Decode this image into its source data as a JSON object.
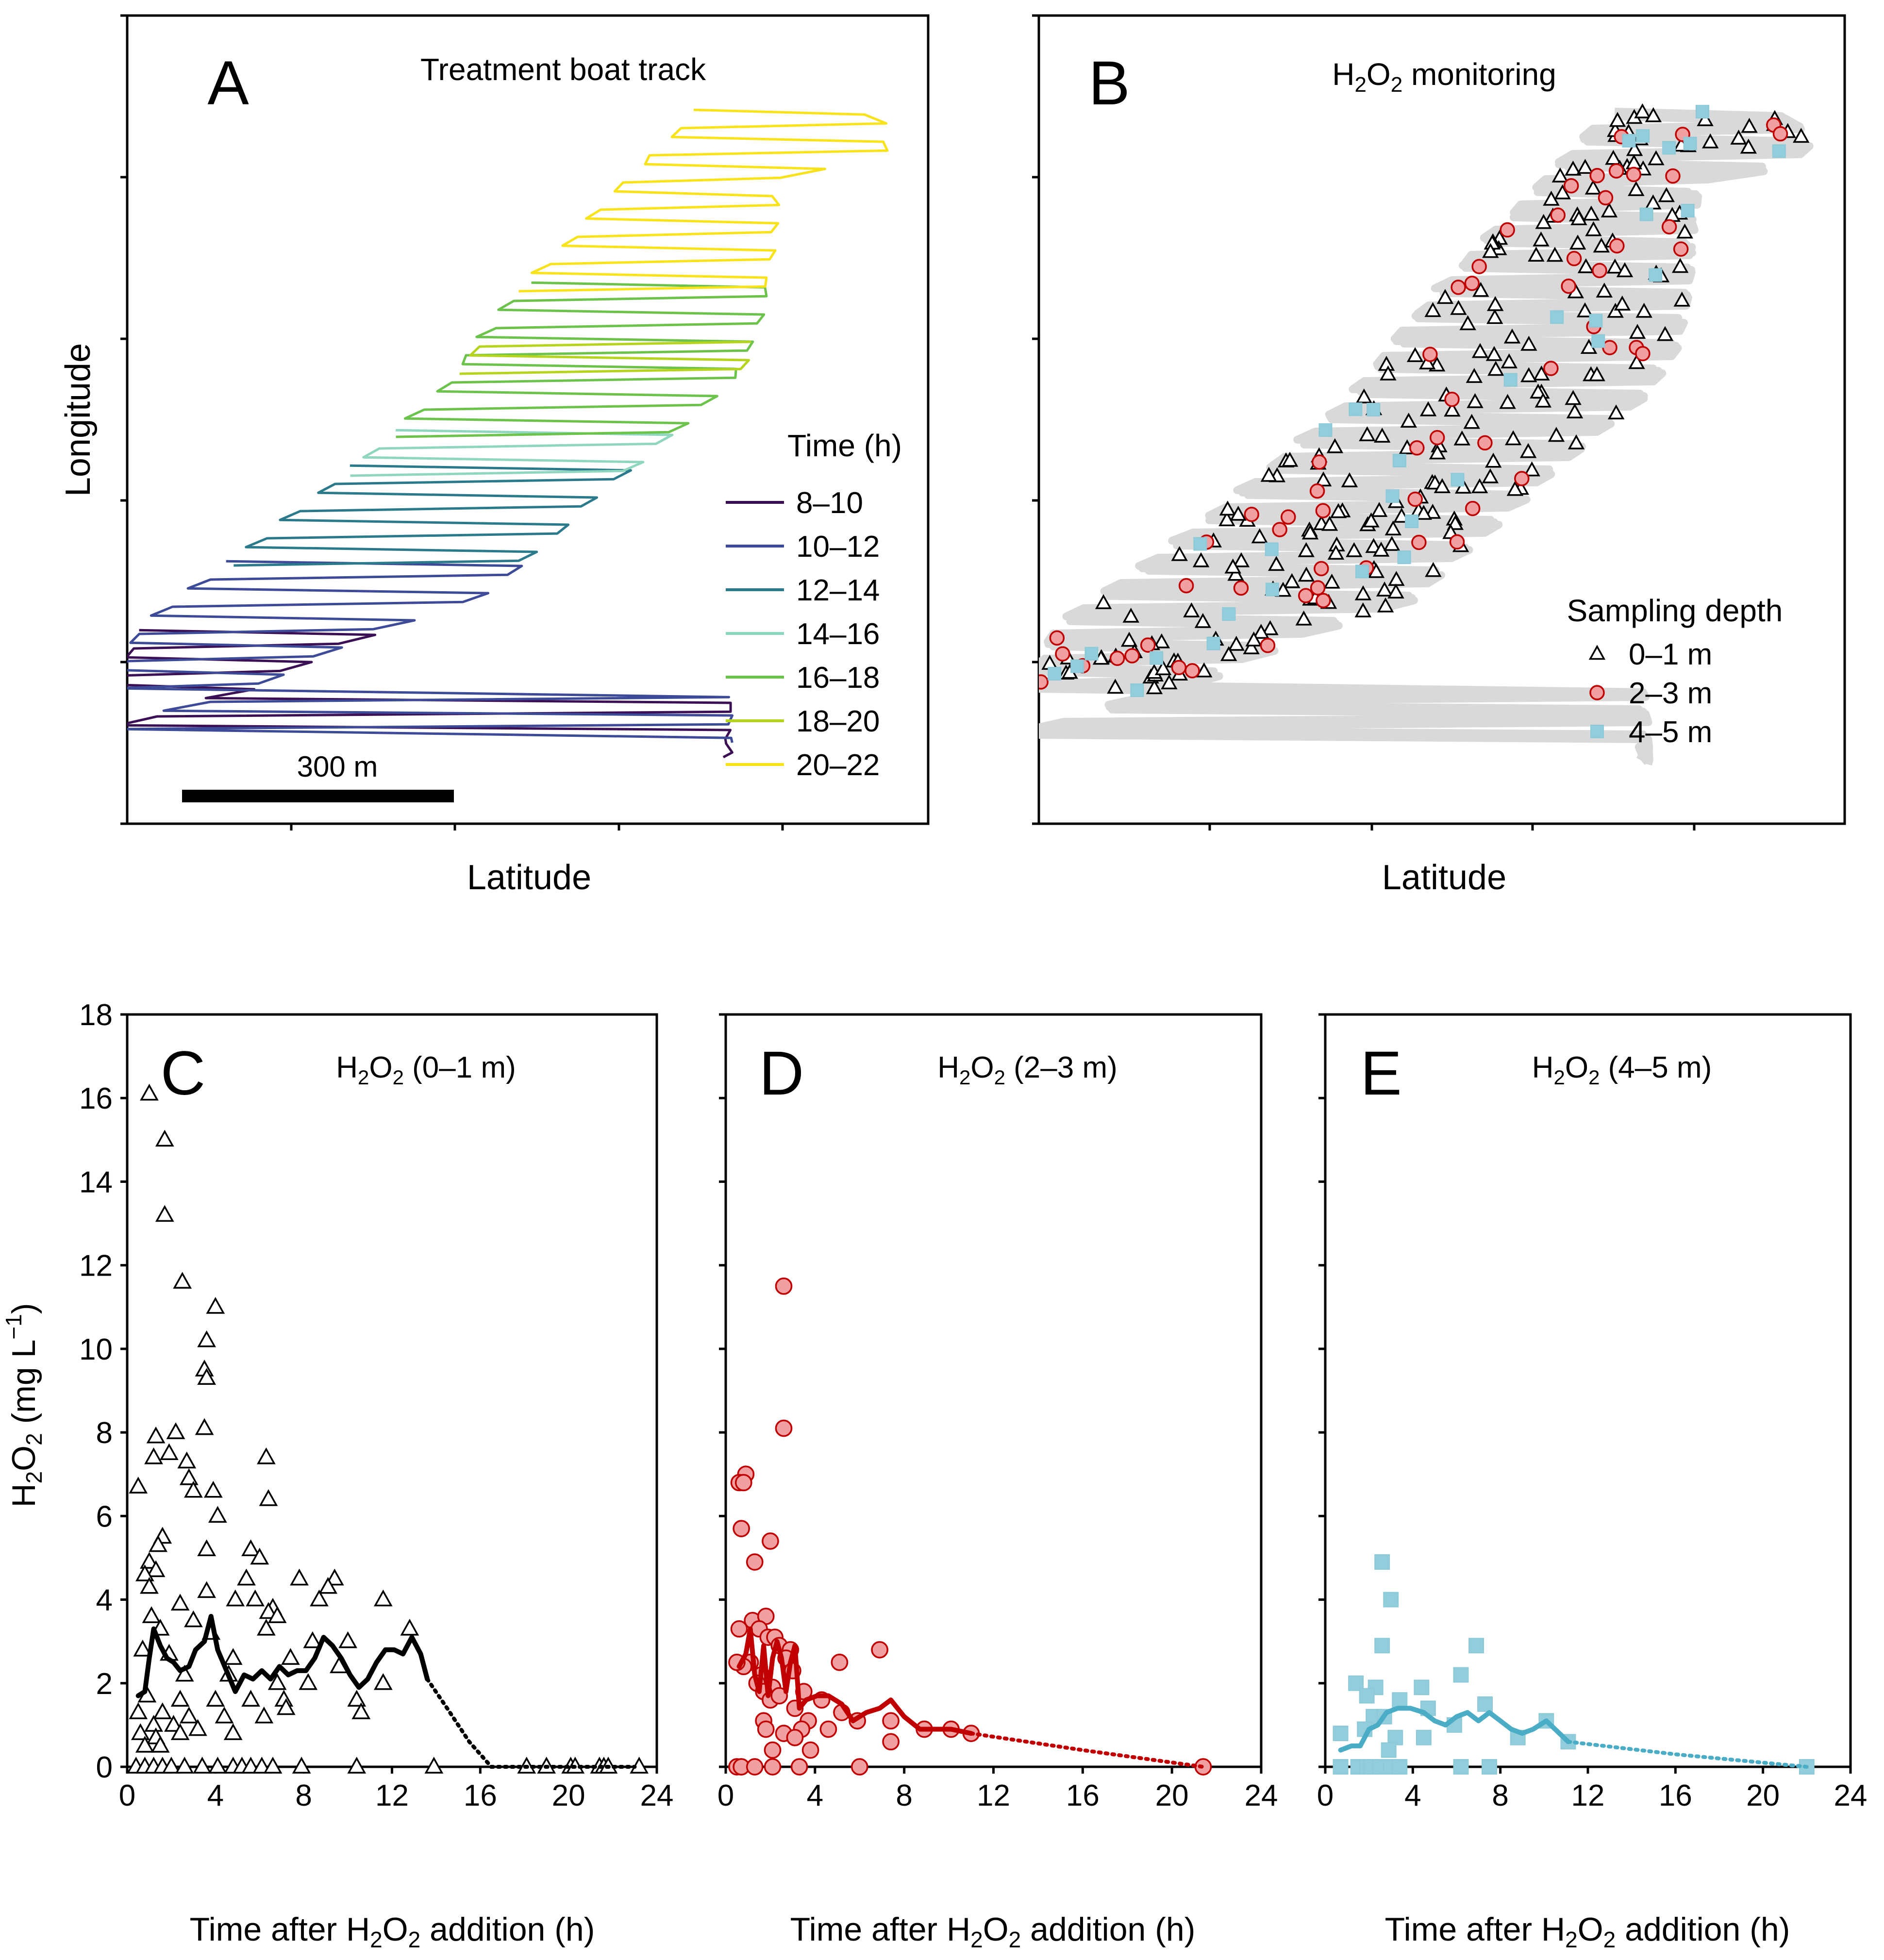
{
  "panels_top": {
    "A": {
      "letter": "A",
      "title": "Treatment boat track",
      "xlabel": "Latitude",
      "ylabel": "Longitude",
      "scale_bar": "300 m",
      "legend_title": "Time  (h)",
      "legend": [
        {
          "label": "8–10",
          "color": "#3b0f54"
        },
        {
          "label": "10–12",
          "color": "#3c4a97"
        },
        {
          "label": "12–14",
          "color": "#2a7a8c"
        },
        {
          "label": "14–16",
          "color": "#8fd6be"
        },
        {
          "label": "16–18",
          "color": "#6cc34c"
        },
        {
          "label": "18–20",
          "color": "#b5d41f"
        },
        {
          "label": "20–22",
          "color": "#f7e21b"
        }
      ]
    },
    "B": {
      "letter": "B",
      "title_pre": "H",
      "title_sub": "2",
      "title_mid": "O",
      "title_sub2": "2",
      "title_post": " monitoring",
      "xlabel": "Latitude",
      "legend_title": "Sampling depth",
      "legend": [
        {
          "label": "0–1 m",
          "marker": "triangle"
        },
        {
          "label": "2–3 m",
          "marker": "circle"
        },
        {
          "label": "4–5 m",
          "marker": "square"
        }
      ]
    }
  },
  "ylabel_bottom": {
    "pre": "H",
    "sub": "2",
    "mid": "O",
    "sub2": "2",
    "post": " (mg L",
    "sup": "−1",
    "end": ")"
  },
  "xlabel_bottom": {
    "pre": "Time after H",
    "sub": "2",
    "mid": "O",
    "sub2": "2",
    "post": " addition (h)"
  },
  "colors": {
    "black": "#000000",
    "red": "#c00000",
    "red_fill": "#f0a0a0",
    "blue": "#4bacc6",
    "blue_fill": "#92cddc",
    "track_gray": "#d9d9d9"
  },
  "chart_data": [
    {
      "type": "scatter",
      "panel": "C",
      "letter": "C",
      "title": {
        "pre": "H",
        "sub": "2",
        "mid": "O",
        "sub2": "2",
        "post": " (0–1 m)"
      },
      "xlim": [
        0,
        24
      ],
      "ylim": [
        0,
        18
      ],
      "xticks": [
        0,
        4,
        8,
        12,
        16,
        20,
        24
      ],
      "yticks": [
        0,
        2,
        4,
        6,
        8,
        10,
        12,
        14,
        16,
        18
      ],
      "marker": "triangle",
      "points": [
        [
          1.0,
          16.1
        ],
        [
          1.7,
          15.0
        ],
        [
          1.7,
          13.2
        ],
        [
          2.5,
          11.6
        ],
        [
          4.0,
          11.0
        ],
        [
          3.6,
          10.2
        ],
        [
          3.5,
          9.5
        ],
        [
          3.6,
          9.3
        ],
        [
          3.5,
          8.1
        ],
        [
          2.2,
          8.0
        ],
        [
          1.3,
          7.9
        ],
        [
          1.9,
          7.5
        ],
        [
          1.2,
          7.4
        ],
        [
          2.7,
          7.3
        ],
        [
          6.3,
          7.4
        ],
        [
          0.5,
          6.7
        ],
        [
          3.9,
          6.6
        ],
        [
          2.8,
          6.9
        ],
        [
          3.0,
          6.6
        ],
        [
          6.4,
          6.4
        ],
        [
          4.1,
          6.0
        ],
        [
          1.6,
          5.5
        ],
        [
          1.4,
          5.3
        ],
        [
          3.6,
          5.2
        ],
        [
          5.6,
          5.2
        ],
        [
          1.0,
          4.9
        ],
        [
          6.0,
          5.0
        ],
        [
          1.3,
          4.7
        ],
        [
          0.8,
          4.6
        ],
        [
          5.4,
          4.5
        ],
        [
          7.8,
          4.5
        ],
        [
          9.4,
          4.5
        ],
        [
          9.1,
          4.3
        ],
        [
          1.0,
          4.3
        ],
        [
          3.6,
          4.2
        ],
        [
          4.9,
          4.0
        ],
        [
          5.8,
          4.0
        ],
        [
          2.4,
          3.9
        ],
        [
          8.7,
          4.0
        ],
        [
          11.6,
          4.0
        ],
        [
          6.6,
          3.8
        ],
        [
          6.4,
          3.7
        ],
        [
          1.1,
          3.6
        ],
        [
          6.8,
          3.6
        ],
        [
          3.0,
          3.5
        ],
        [
          1.5,
          3.3
        ],
        [
          6.3,
          3.3
        ],
        [
          12.8,
          3.3
        ],
        [
          3.8,
          3.2
        ],
        [
          8.4,
          3.0
        ],
        [
          10.0,
          3.0
        ],
        [
          0.7,
          2.8
        ],
        [
          1.9,
          2.7
        ],
        [
          4.8,
          2.6
        ],
        [
          7.4,
          2.6
        ],
        [
          9.6,
          2.4
        ],
        [
          2.6,
          2.2
        ],
        [
          4.6,
          2.2
        ],
        [
          6.8,
          2.0
        ],
        [
          8.2,
          2.0
        ],
        [
          11.6,
          2.0
        ],
        [
          0.9,
          1.7
        ],
        [
          2.4,
          1.6
        ],
        [
          4.0,
          1.6
        ],
        [
          5.6,
          1.6
        ],
        [
          7.1,
          1.6
        ],
        [
          10.4,
          1.6
        ],
        [
          0.5,
          1.3
        ],
        [
          1.6,
          1.3
        ],
        [
          2.8,
          1.2
        ],
        [
          4.4,
          1.2
        ],
        [
          6.2,
          1.2
        ],
        [
          7.2,
          1.4
        ],
        [
          10.6,
          1.3
        ],
        [
          1.2,
          1.0
        ],
        [
          2.1,
          1.0
        ],
        [
          3.2,
          0.9
        ],
        [
          0.6,
          0.8
        ],
        [
          1.3,
          0.7
        ],
        [
          2.4,
          0.8
        ],
        [
          4.8,
          0.8
        ],
        [
          0.8,
          0.5
        ],
        [
          1.5,
          0.5
        ],
        [
          0.4,
          0.0
        ],
        [
          0.8,
          0.0
        ],
        [
          1.2,
          0.0
        ],
        [
          1.6,
          0.0
        ],
        [
          2.0,
          0.0
        ],
        [
          2.6,
          0.0
        ],
        [
          3.4,
          0.0
        ],
        [
          4.1,
          0.0
        ],
        [
          4.8,
          0.0
        ],
        [
          5.2,
          0.0
        ],
        [
          5.6,
          0.0
        ],
        [
          6.1,
          0.0
        ],
        [
          6.6,
          0.0
        ],
        [
          7.9,
          0.0
        ],
        [
          10.4,
          0.0
        ],
        [
          13.9,
          0.0
        ],
        [
          18.1,
          0.0
        ],
        [
          19.0,
          0.0
        ],
        [
          20.1,
          0.0
        ],
        [
          20.3,
          0.0
        ],
        [
          21.4,
          0.0
        ],
        [
          21.6,
          0.0
        ],
        [
          21.8,
          0.0
        ],
        [
          23.2,
          0.0
        ]
      ],
      "line": [
        [
          0.5,
          1.7
        ],
        [
          0.8,
          1.8
        ],
        [
          1.0,
          2.6
        ],
        [
          1.2,
          3.3
        ],
        [
          1.5,
          2.9
        ],
        [
          1.8,
          2.6
        ],
        [
          2.1,
          2.5
        ],
        [
          2.4,
          2.3
        ],
        [
          2.8,
          2.4
        ],
        [
          3.1,
          2.8
        ],
        [
          3.5,
          3.0
        ],
        [
          3.8,
          3.6
        ],
        [
          4.1,
          2.8
        ],
        [
          4.5,
          2.3
        ],
        [
          4.9,
          1.8
        ],
        [
          5.3,
          2.2
        ],
        [
          5.7,
          2.1
        ],
        [
          6.1,
          2.3
        ],
        [
          6.5,
          2.1
        ],
        [
          6.9,
          2.4
        ],
        [
          7.3,
          2.2
        ],
        [
          7.7,
          2.3
        ],
        [
          8.1,
          2.3
        ],
        [
          8.5,
          2.6
        ],
        [
          8.9,
          3.1
        ],
        [
          9.3,
          2.9
        ],
        [
          9.7,
          2.6
        ],
        [
          10.1,
          2.2
        ],
        [
          10.5,
          1.9
        ],
        [
          10.9,
          2.1
        ],
        [
          11.3,
          2.5
        ],
        [
          11.7,
          2.8
        ],
        [
          12.1,
          2.8
        ],
        [
          12.5,
          2.7
        ],
        [
          12.9,
          3.1
        ],
        [
          13.3,
          2.7
        ],
        [
          13.6,
          2.1
        ]
      ],
      "line_ext": [
        [
          13.6,
          2.1
        ],
        [
          14.5,
          1.4
        ],
        [
          15.5,
          0.6
        ],
        [
          16.5,
          0.0
        ],
        [
          23.0,
          0.0
        ]
      ]
    },
    {
      "type": "scatter",
      "panel": "D",
      "letter": "D",
      "title": {
        "pre": "H",
        "sub": "2",
        "mid": "O",
        "sub2": "2",
        "post": " (2–3 m)"
      },
      "xlim": [
        0,
        24
      ],
      "ylim": [
        0,
        18
      ],
      "xticks": [
        0,
        4,
        8,
        12,
        16,
        20,
        24
      ],
      "marker": "circle",
      "points": [
        [
          2.6,
          11.5
        ],
        [
          2.6,
          8.1
        ],
        [
          0.9,
          7.0
        ],
        [
          0.6,
          6.8
        ],
        [
          0.8,
          6.8
        ],
        [
          0.7,
          5.7
        ],
        [
          2.0,
          5.4
        ],
        [
          1.3,
          4.9
        ],
        [
          1.2,
          3.5
        ],
        [
          1.8,
          3.6
        ],
        [
          1.5,
          3.3
        ],
        [
          0.6,
          3.3
        ],
        [
          1.9,
          3.1
        ],
        [
          2.2,
          3.1
        ],
        [
          2.4,
          2.9
        ],
        [
          2.9,
          2.8
        ],
        [
          6.9,
          2.8
        ],
        [
          2.7,
          2.6
        ],
        [
          1.1,
          2.5
        ],
        [
          0.8,
          2.4
        ],
        [
          0.5,
          2.5
        ],
        [
          3.0,
          2.3
        ],
        [
          1.6,
          2.2
        ],
        [
          1.4,
          2.0
        ],
        [
          2.1,
          1.9
        ],
        [
          1.7,
          1.8
        ],
        [
          2.0,
          1.6
        ],
        [
          2.4,
          1.7
        ],
        [
          5.1,
          2.5
        ],
        [
          3.5,
          1.8
        ],
        [
          3.1,
          1.4
        ],
        [
          4.3,
          1.6
        ],
        [
          5.2,
          1.3
        ],
        [
          1.7,
          1.1
        ],
        [
          3.7,
          1.1
        ],
        [
          7.4,
          1.1
        ],
        [
          3.4,
          0.9
        ],
        [
          4.6,
          0.9
        ],
        [
          1.8,
          0.9
        ],
        [
          2.6,
          0.8
        ],
        [
          3.1,
          0.7
        ],
        [
          5.9,
          1.1
        ],
        [
          7.4,
          0.6
        ],
        [
          2.1,
          0.4
        ],
        [
          3.8,
          0.4
        ],
        [
          0.5,
          0.0
        ],
        [
          0.7,
          0.0
        ],
        [
          1.3,
          0.0
        ],
        [
          2.1,
          0.0
        ],
        [
          3.3,
          0.0
        ],
        [
          6.0,
          0.0
        ],
        [
          8.9,
          0.9
        ],
        [
          10.1,
          0.9
        ],
        [
          11.0,
          0.8
        ],
        [
          21.4,
          0.0
        ]
      ],
      "line": [
        [
          0.6,
          2.4
        ],
        [
          0.9,
          2.7
        ],
        [
          1.1,
          3.3
        ],
        [
          1.3,
          2.2
        ],
        [
          1.5,
          1.8
        ],
        [
          1.7,
          2.9
        ],
        [
          1.9,
          1.7
        ],
        [
          2.1,
          2.6
        ],
        [
          2.3,
          3.0
        ],
        [
          2.5,
          2.6
        ],
        [
          2.7,
          1.8
        ],
        [
          2.9,
          2.5
        ],
        [
          3.1,
          2.9
        ],
        [
          3.3,
          1.4
        ],
        [
          3.6,
          1.6
        ],
        [
          4.1,
          1.7
        ],
        [
          4.6,
          1.7
        ],
        [
          5.2,
          1.5
        ],
        [
          5.7,
          1.1
        ],
        [
          6.3,
          1.3
        ],
        [
          6.9,
          1.4
        ],
        [
          7.4,
          1.6
        ],
        [
          8.0,
          1.2
        ],
        [
          8.7,
          0.9
        ],
        [
          9.4,
          0.9
        ],
        [
          10.1,
          0.9
        ],
        [
          11.0,
          0.8
        ]
      ],
      "line_ext": [
        [
          11.0,
          0.8
        ],
        [
          16.0,
          0.4
        ],
        [
          21.4,
          0.0
        ]
      ]
    },
    {
      "type": "scatter",
      "panel": "E",
      "letter": "E",
      "title": {
        "pre": "H",
        "sub": "2",
        "mid": "O",
        "sub2": "2",
        "post": " (4–5 m)"
      },
      "xlim": [
        0,
        24
      ],
      "ylim": [
        0,
        18
      ],
      "xticks": [
        0,
        4,
        8,
        12,
        16,
        20,
        24
      ],
      "marker": "square",
      "points": [
        [
          2.6,
          4.9
        ],
        [
          3.0,
          4.0
        ],
        [
          2.6,
          2.9
        ],
        [
          6.9,
          2.9
        ],
        [
          6.2,
          2.2
        ],
        [
          1.4,
          2.0
        ],
        [
          2.3,
          1.9
        ],
        [
          4.4,
          1.9
        ],
        [
          1.9,
          1.7
        ],
        [
          3.4,
          1.6
        ],
        [
          4.7,
          1.4
        ],
        [
          7.3,
          1.5
        ],
        [
          10.1,
          1.1
        ],
        [
          2.2,
          1.2
        ],
        [
          2.7,
          1.2
        ],
        [
          5.9,
          1.0
        ],
        [
          1.8,
          0.9
        ],
        [
          0.7,
          0.8
        ],
        [
          8.8,
          0.7
        ],
        [
          4.5,
          0.7
        ],
        [
          3.2,
          0.7
        ],
        [
          11.1,
          0.6
        ],
        [
          2.9,
          0.4
        ],
        [
          0.7,
          0.0
        ],
        [
          1.5,
          0.0
        ],
        [
          1.9,
          0.0
        ],
        [
          2.1,
          0.0
        ],
        [
          2.5,
          0.0
        ],
        [
          3.0,
          0.0
        ],
        [
          3.4,
          0.0
        ],
        [
          6.2,
          0.0
        ],
        [
          7.5,
          0.0
        ],
        [
          22.0,
          0.0
        ]
      ],
      "line": [
        [
          0.7,
          0.4
        ],
        [
          1.2,
          0.5
        ],
        [
          1.6,
          0.5
        ],
        [
          2.0,
          0.9
        ],
        [
          2.4,
          1.0
        ],
        [
          2.8,
          1.3
        ],
        [
          3.3,
          1.4
        ],
        [
          3.9,
          1.4
        ],
        [
          4.5,
          1.3
        ],
        [
          5.0,
          1.1
        ],
        [
          5.5,
          1.0
        ],
        [
          6.0,
          1.2
        ],
        [
          6.5,
          1.3
        ],
        [
          7.0,
          1.1
        ],
        [
          7.5,
          1.3
        ],
        [
          8.0,
          1.1
        ],
        [
          8.5,
          0.9
        ],
        [
          9.0,
          0.8
        ],
        [
          9.5,
          0.9
        ],
        [
          10.1,
          1.1
        ],
        [
          10.5,
          0.9
        ],
        [
          11.1,
          0.6
        ]
      ],
      "line_ext": [
        [
          11.1,
          0.6
        ],
        [
          16.0,
          0.3
        ],
        [
          22.0,
          0.0
        ]
      ]
    }
  ]
}
